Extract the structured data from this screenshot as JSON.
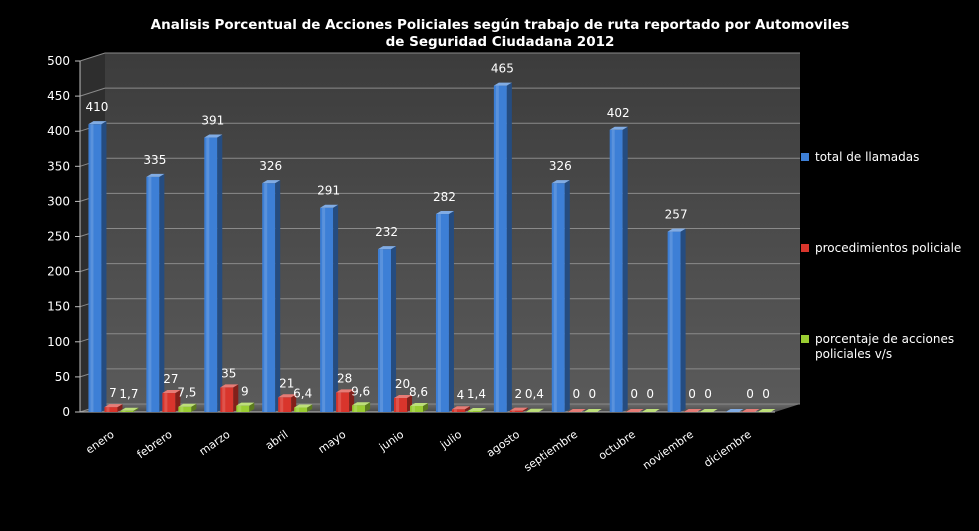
{
  "chart_data": {
    "type": "bar",
    "title": "Analisis Porcentual de Acciones Policiales según trabajo de ruta reportado por Automoviles",
    "subtitle": "de Seguridad Ciudadana 2012",
    "categories": [
      "enero",
      "febrero",
      "marzo",
      "abril",
      "mayo",
      "junio",
      "julio",
      "agosto",
      "septiembre",
      "octubre",
      "noviembre",
      "diciembre"
    ],
    "ylim": [
      0,
      500
    ],
    "yticks": [
      "0",
      "50",
      "100",
      "150",
      "200",
      "250",
      "300",
      "350",
      "400",
      "450",
      "500"
    ],
    "grid": true,
    "legend_position": "right",
    "series": [
      {
        "name": "total de llamadas",
        "color": "#3d7fd6",
        "values": [
          410,
          335,
          391,
          326,
          291,
          232,
          282,
          465,
          326,
          402,
          257,
          0
        ],
        "labels": [
          "410",
          "335",
          "391",
          "326",
          "291",
          "232",
          "282",
          "465",
          "326",
          "402",
          "257",
          "0"
        ]
      },
      {
        "name": "procedimientos policiale",
        "color": "#d9352c",
        "values": [
          7,
          27,
          35,
          21,
          28,
          20,
          4,
          2,
          0,
          0,
          0,
          0
        ],
        "labels": [
          "7",
          "27",
          "35",
          "21",
          "28",
          "20",
          "4",
          "2",
          "0",
          "0",
          "0",
          "0"
        ]
      },
      {
        "name": "porcentaje de acciones policiales v/s",
        "name_lines": [
          "porcentaje de acciones",
          "policiales v/s"
        ],
        "color": "#9acd32",
        "values": [
          1.7,
          7.5,
          9,
          6.4,
          9.6,
          8.6,
          1.4,
          0.4,
          0,
          0,
          0,
          0
        ],
        "labels": [
          "1,7",
          "7,5",
          "9",
          "6,4",
          "9,6",
          "8,6",
          "1,4",
          "0,4",
          "0",
          "0",
          "0",
          "0"
        ]
      }
    ]
  }
}
